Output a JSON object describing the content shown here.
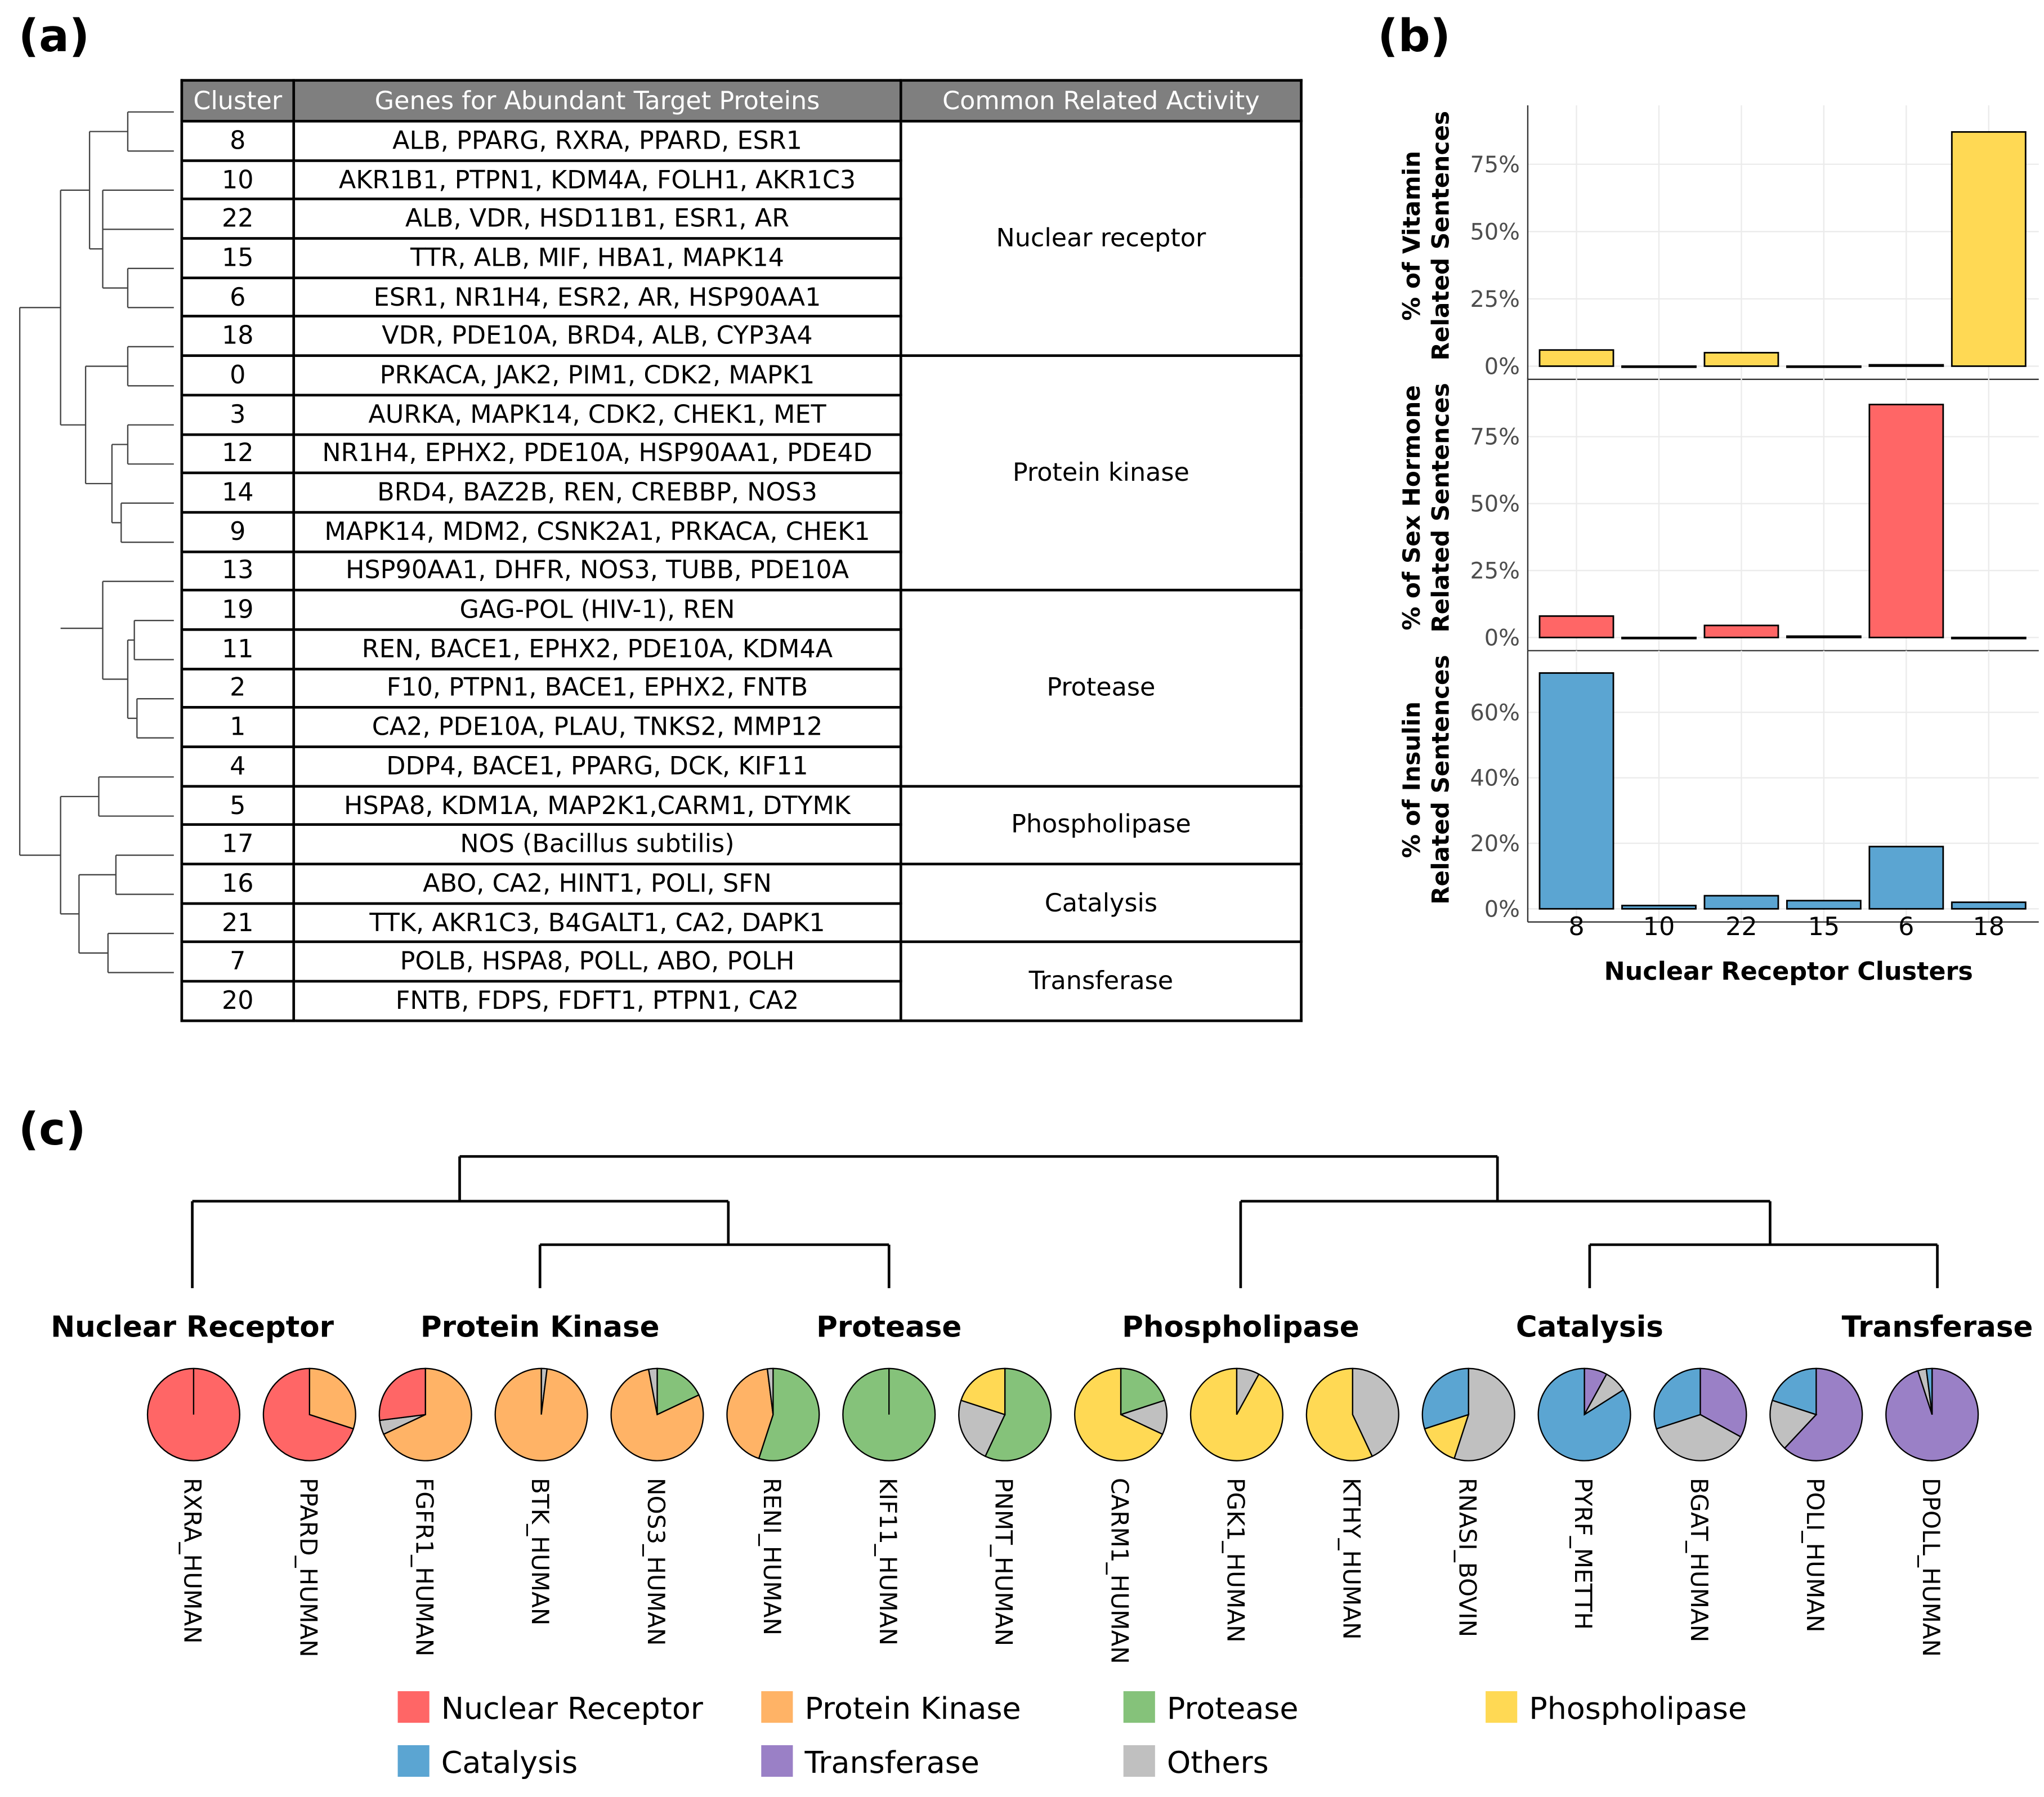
{
  "panels": {
    "a": "(a)",
    "b": "(b)",
    "c": "(c)"
  },
  "table": {
    "headers": [
      "Cluster",
      "Genes for Abundant Target Proteins",
      "Common Related Activity"
    ],
    "groups": [
      {
        "activity": "Nuclear receptor",
        "rows": [
          [
            "8",
            "ALB, PPARG, RXRA, PPARD, ESR1"
          ],
          [
            "10",
            "AKR1B1, PTPN1, KDM4A, FOLH1, AKR1C3"
          ],
          [
            "22",
            "ALB, VDR, HSD11B1, ESR1, AR"
          ],
          [
            "15",
            "TTR, ALB, MIF, HBA1, MAPK14"
          ],
          [
            "6",
            "ESR1, NR1H4, ESR2, AR, HSP90AA1"
          ],
          [
            "18",
            "VDR, PDE10A, BRD4, ALB, CYP3A4"
          ]
        ]
      },
      {
        "activity": "Protein kinase",
        "rows": [
          [
            "0",
            "PRKACA, JAK2, PIM1, CDK2, MAPK1"
          ],
          [
            "3",
            "AURKA, MAPK14, CDK2, CHEK1, MET"
          ],
          [
            "12",
            "NR1H4, EPHX2, PDE10A, HSP90AA1, PDE4D"
          ],
          [
            "14",
            "BRD4, BAZ2B, REN, CREBBP, NOS3"
          ],
          [
            "9",
            "MAPK14, MDM2, CSNK2A1, PRKACA, CHEK1"
          ],
          [
            "13",
            "HSP90AA1, DHFR, NOS3, TUBB, PDE10A"
          ]
        ]
      },
      {
        "activity": "Protease",
        "rows": [
          [
            "19",
            "GAG-POL (HIV-1), REN"
          ],
          [
            "11",
            "REN, BACE1, EPHX2, PDE10A, KDM4A"
          ],
          [
            "2",
            "F10, PTPN1, BACE1, EPHX2, FNTB"
          ],
          [
            "1",
            "CA2, PDE10A, PLAU, TNKS2, MMP12"
          ],
          [
            "4",
            "DDP4, BACE1, PPARG, DCK, KIF11"
          ]
        ]
      },
      {
        "activity": "Phospholipase",
        "rows": [
          [
            "5",
            "HSPA8, KDM1A, MAP2K1,CARM1, DTYMK"
          ],
          [
            "17",
            "NOS (Bacillus subtilis)"
          ]
        ]
      },
      {
        "activity": "Catalysis",
        "rows": [
          [
            "16",
            "ABO, CA2, HINT1, POLI, SFN"
          ],
          [
            "21",
            "TTK, AKR1C3, B4GALT1, CA2, DAPK1"
          ]
        ]
      },
      {
        "activity": "Transferase",
        "rows": [
          [
            "7",
            "POLB, HSPA8, POLL, ABO, POLH"
          ],
          [
            "20",
            "FNTB, FDPS, FDFT1, PTPN1, CA2"
          ]
        ]
      }
    ]
  },
  "chart_data": [
    {
      "type": "bar",
      "xlabel": "Nuclear Receptor Clusters",
      "categories": [
        "8",
        "10",
        "22",
        "15",
        "6",
        "18"
      ],
      "panels": [
        {
          "ylabel": [
            "% of Vitamin",
            "Related Sentences"
          ],
          "values": [
            6,
            0,
            5,
            0,
            0.5,
            87
          ],
          "ylim": [
            0,
            91
          ],
          "yticks": [
            "0%",
            "25%",
            "50%",
            "75%"
          ],
          "ytick_values": [
            0,
            25,
            50,
            75
          ],
          "color": "#FFD954"
        },
        {
          "ylabel": [
            "% of Sex Hormone",
            "Related Sentences"
          ],
          "values": [
            8,
            0,
            4.5,
            0.5,
            87,
            0
          ],
          "ylim": [
            0,
            91
          ],
          "yticks": [
            "0%",
            "25%",
            "50%",
            "75%"
          ],
          "ytick_values": [
            0,
            25,
            50,
            75
          ],
          "color": "#FF6666"
        },
        {
          "ylabel": [
            "% of Insulin",
            "Related Sentences"
          ],
          "values": [
            72,
            1,
            4,
            2.5,
            19,
            2
          ],
          "ylim": [
            0,
            74
          ],
          "yticks": [
            "0%",
            "20%",
            "40%",
            "60%"
          ],
          "ytick_values": [
            0,
            20,
            40,
            60
          ],
          "color": "#5BA5D2"
        }
      ],
      "grid": true
    },
    {
      "type": "pie",
      "groups": [
        "Nuclear Receptor",
        "Protein Kinase",
        "Protease",
        "Phospholipase",
        "Catalysis",
        "Transferase"
      ],
      "legend": [
        {
          "name": "Nuclear Receptor",
          "color": "#FF6666"
        },
        {
          "name": "Protein Kinase",
          "color": "#FFB366"
        },
        {
          "name": "Protease",
          "color": "#85C27A"
        },
        {
          "name": "Phospholipase",
          "color": "#FFD954"
        },
        {
          "name": "Catalysis",
          "color": "#5BA5D2"
        },
        {
          "name": "Transferase",
          "color": "#9A80C6"
        },
        {
          "name": "Others",
          "color": "#C0C0C0"
        }
      ],
      "pies": [
        {
          "label": "RXRA_HUMAN",
          "slices": [
            [
              "Nuclear Receptor",
              1
            ]
          ]
        },
        {
          "label": "PPARD_HUMAN",
          "slices": [
            [
              "Protein Kinase",
              0.3
            ],
            [
              "Nuclear Receptor",
              0.7
            ]
          ]
        },
        {
          "label": "FGFR1_HUMAN",
          "slices": [
            [
              "Protein Kinase",
              0.68
            ],
            [
              "Others",
              0.05
            ],
            [
              "Nuclear Receptor",
              0.27
            ]
          ]
        },
        {
          "label": "BTK_HUMAN",
          "slices": [
            [
              "Others",
              0.02
            ],
            [
              "Protein Kinase",
              0.98
            ]
          ]
        },
        {
          "label": "NOS3_HUMAN",
          "slices": [
            [
              "Protease",
              0.18
            ],
            [
              "Protein Kinase",
              0.79
            ],
            [
              "Others",
              0.03
            ]
          ]
        },
        {
          "label": "RENI_HUMAN",
          "slices": [
            [
              "Protease",
              0.55
            ],
            [
              "Protein Kinase",
              0.43
            ],
            [
              "Others",
              0.02
            ]
          ]
        },
        {
          "label": "KIF11_HUMAN",
          "slices": [
            [
              "Protease",
              1
            ]
          ]
        },
        {
          "label": "PNMT_HUMAN",
          "slices": [
            [
              "Protease",
              0.57
            ],
            [
              "Others",
              0.23
            ],
            [
              "Phospholipase",
              0.2
            ]
          ]
        },
        {
          "label": "CARM1_HUMAN",
          "slices": [
            [
              "Protease",
              0.2
            ],
            [
              "Others",
              0.12
            ],
            [
              "Phospholipase",
              0.68
            ]
          ]
        },
        {
          "label": "PGK1_HUMAN",
          "slices": [
            [
              "Others",
              0.08
            ],
            [
              "Phospholipase",
              0.92
            ]
          ]
        },
        {
          "label": "KTHY_HUMAN",
          "slices": [
            [
              "Others",
              0.43
            ],
            [
              "Phospholipase",
              0.57
            ]
          ]
        },
        {
          "label": "RNASI_BOVIN",
          "slices": [
            [
              "Others",
              0.55
            ],
            [
              "Phospholipase",
              0.15
            ],
            [
              "Catalysis",
              0.3
            ]
          ]
        },
        {
          "label": "PYRF_METTH",
          "slices": [
            [
              "Transferase",
              0.08
            ],
            [
              "Others",
              0.08
            ],
            [
              "Catalysis",
              0.84
            ]
          ]
        },
        {
          "label": "BGAT_HUMAN",
          "slices": [
            [
              "Transferase",
              0.33
            ],
            [
              "Others",
              0.37
            ],
            [
              "Catalysis",
              0.3
            ]
          ]
        },
        {
          "label": "POLI_HUMAN",
          "slices": [
            [
              "Transferase",
              0.62
            ],
            [
              "Others",
              0.18
            ],
            [
              "Catalysis",
              0.2
            ]
          ]
        },
        {
          "label": "DPOLL_HUMAN",
          "slices": [
            [
              "Transferase",
              0.95
            ],
            [
              "Others",
              0.03
            ],
            [
              "Catalysis",
              0.02
            ]
          ]
        }
      ]
    }
  ]
}
